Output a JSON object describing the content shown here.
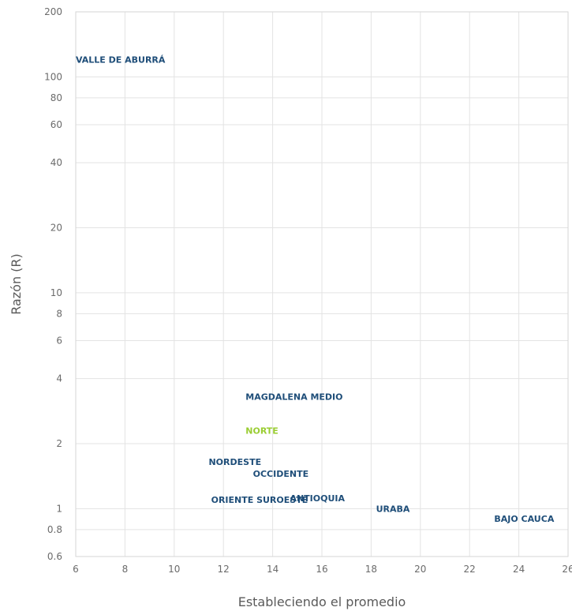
{
  "chart_data": {
    "type": "scatter",
    "title": "",
    "xlabel": "Estableciendo el promedio",
    "ylabel": "Razón (R)",
    "y_scale": "log",
    "xlim": [
      6,
      26
    ],
    "ylim": [
      0.6,
      200
    ],
    "grid": true,
    "x_ticks": [
      6,
      8,
      10,
      12,
      14,
      16,
      18,
      20,
      22,
      24,
      26
    ],
    "y_ticks": [
      0.6,
      0.8,
      1,
      2,
      4,
      6,
      8,
      10,
      20,
      40,
      60,
      80,
      100,
      200
    ],
    "points": [
      {
        "label": "VALLE DE ABURRÁ",
        "x": 6.0,
        "y": 120,
        "color": "#1f4e79"
      },
      {
        "label": "MAGDALENA MEDIO",
        "x": 12.9,
        "y": 3.3,
        "color": "#1f4e79"
      },
      {
        "label": "NORTE",
        "x": 12.9,
        "y": 2.3,
        "color": "#9acd32"
      },
      {
        "label": "NORDESTE",
        "x": 11.4,
        "y": 1.65,
        "color": "#1f4e79"
      },
      {
        "label": "OCCIDENTE",
        "x": 13.2,
        "y": 1.45,
        "color": "#1f4e79"
      },
      {
        "label": "ORIENTE SUROESTE",
        "x": 11.5,
        "y": 1.1,
        "color": "#1f4e79"
      },
      {
        "label": "ANTIOQUIA",
        "x": 14.7,
        "y": 1.12,
        "color": "#1f4e79"
      },
      {
        "label": "URABA",
        "x": 18.2,
        "y": 1.0,
        "color": "#1f4e79"
      },
      {
        "label": "BAJO CAUCA",
        "x": 23.0,
        "y": 0.9,
        "color": "#1f4e79"
      }
    ]
  }
}
